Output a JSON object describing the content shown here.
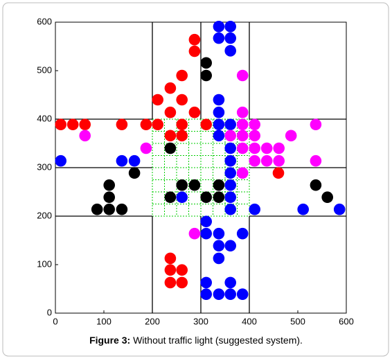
{
  "chart_data": {
    "type": "scatter",
    "caption": {
      "label": "Figure 3:",
      "text": "Without traffic light (suggested system)."
    },
    "xlim": [
      0,
      600
    ],
    "ylim": [
      0,
      600
    ],
    "xticks": [
      0,
      100,
      200,
      300,
      400,
      500,
      600
    ],
    "yticks": [
      0,
      100,
      200,
      300,
      400,
      500,
      600
    ],
    "series": [
      {
        "color": "#ff0000",
        "x": [
          11,
          36,
          61,
          137,
          187,
          211,
          261,
          311,
          287,
          287,
          261,
          237,
          211,
          261,
          237,
          287,
          261,
          237,
          460,
          237,
          237,
          261,
          237,
          261
        ],
        "y": [
          389,
          389,
          389,
          389,
          389,
          389,
          389,
          389,
          564,
          540,
          490,
          464,
          440,
          440,
          414,
          414,
          366,
          366,
          289,
          113,
          89,
          89,
          63,
          63
        ]
      },
      {
        "color": "#0000ff",
        "x": [
          337,
          361,
          337,
          361,
          361,
          337,
          337,
          337,
          361,
          337,
          361,
          361,
          361,
          361,
          361,
          361,
          137,
          163,
          11,
          261,
          411,
          511,
          586,
          311,
          311,
          337,
          361,
          337,
          337,
          386,
          311,
          311,
          337,
          361,
          361,
          386
        ],
        "y": [
          591,
          591,
          567,
          567,
          541,
          440,
          414,
          389,
          389,
          366,
          340,
          314,
          289,
          264,
          239,
          214,
          314,
          314,
          314,
          239,
          214,
          214,
          214,
          189,
          164,
          164,
          139,
          139,
          113,
          164,
          63,
          39,
          39,
          39,
          63,
          39
        ]
      },
      {
        "color": "#000000",
        "x": [
          311,
          311,
          237,
          111,
          86,
          111,
          111,
          137,
          163,
          261,
          287,
          237,
          311,
          337,
          337,
          537,
          561
        ],
        "y": [
          516,
          490,
          340,
          264,
          214,
          239,
          214,
          214,
          289,
          264,
          264,
          239,
          239,
          239,
          264,
          264,
          239
        ]
      },
      {
        "color": "#ff00ff",
        "x": [
          386,
          386,
          386,
          411,
          386,
          361,
          386,
          411,
          436,
          461,
          411,
          411,
          436,
          461,
          486,
          537,
          537,
          386,
          187,
          61,
          287
        ],
        "y": [
          490,
          414,
          389,
          389,
          366,
          366,
          340,
          340,
          340,
          340,
          366,
          314,
          314,
          314,
          366,
          389,
          314,
          289,
          340,
          366,
          164
        ]
      }
    ]
  }
}
